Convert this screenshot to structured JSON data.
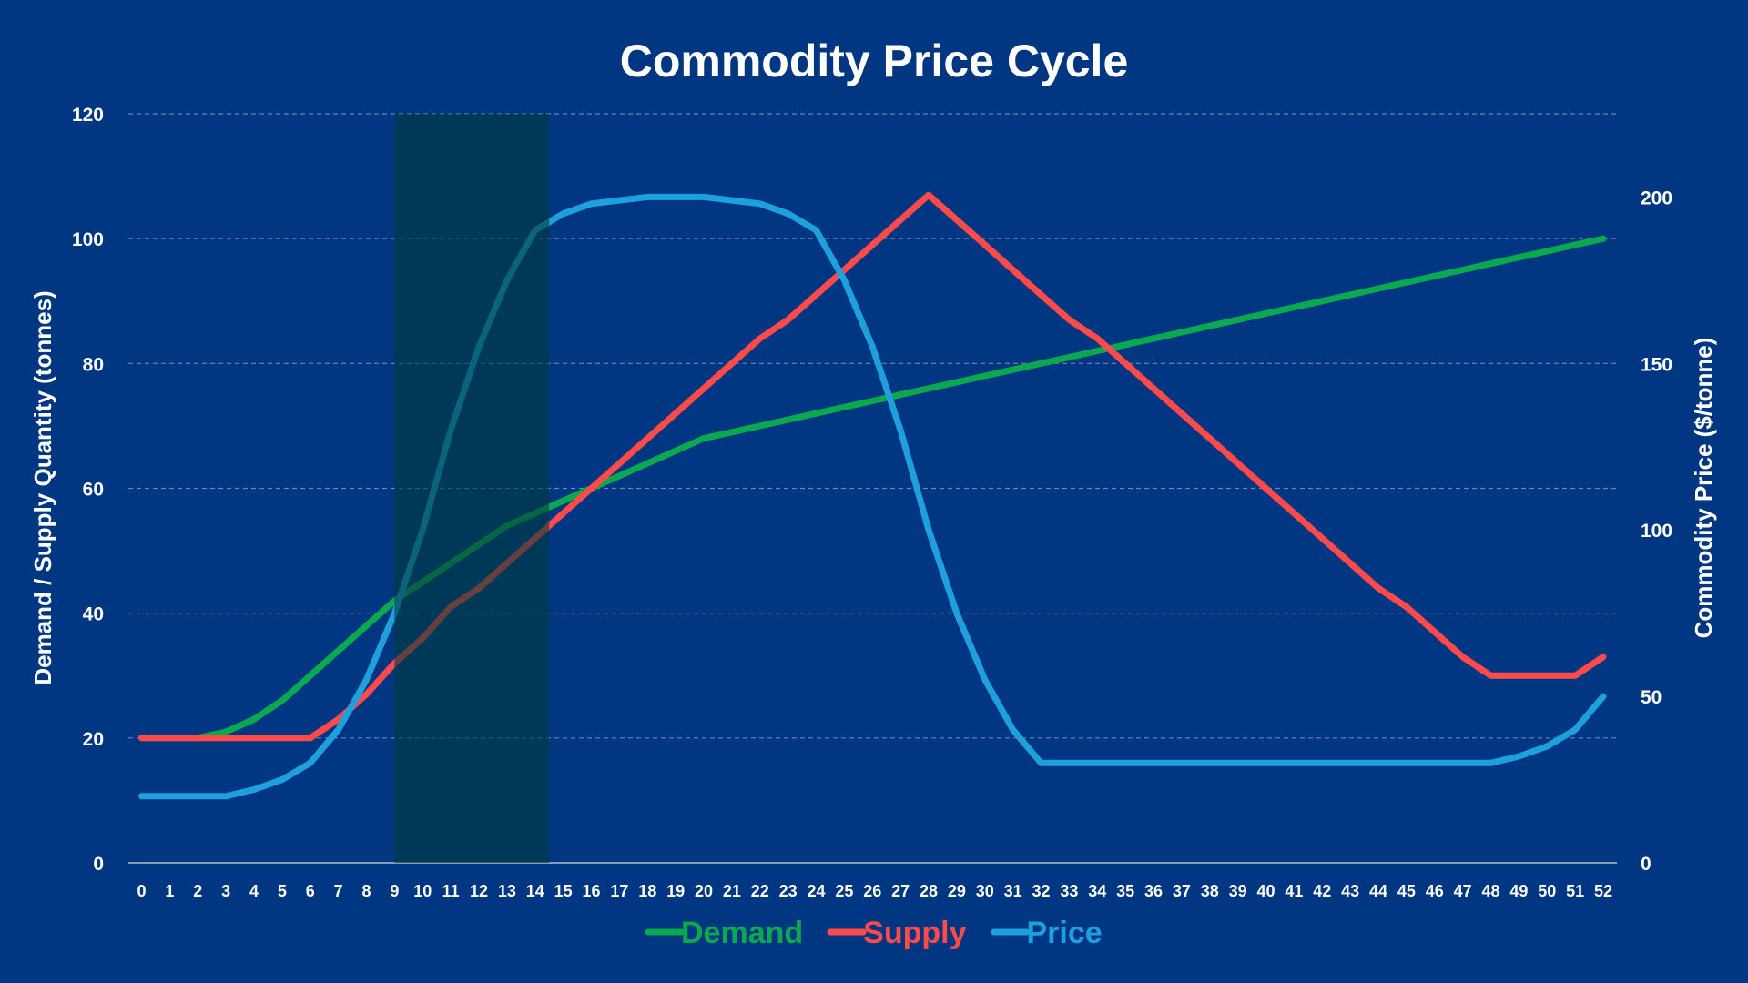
{
  "chart_data": {
    "type": "line",
    "title": "Commodity Price Cycle",
    "xlabel": "",
    "ylabel": "Demand  / Supply Quantity (tonnes)",
    "y2label": "Commodity Price ($/tonne)",
    "x": [
      0,
      1,
      2,
      3,
      4,
      5,
      6,
      7,
      8,
      9,
      10,
      11,
      12,
      13,
      14,
      15,
      16,
      17,
      18,
      19,
      20,
      21,
      22,
      23,
      24,
      25,
      26,
      27,
      28,
      29,
      30,
      31,
      32,
      33,
      34,
      35,
      36,
      37,
      38,
      39,
      40,
      41,
      42,
      43,
      44,
      45,
      46,
      47,
      48,
      49,
      50,
      51,
      52
    ],
    "ylim": [
      0,
      120
    ],
    "yticks": [
      0,
      20,
      40,
      60,
      80,
      100,
      120
    ],
    "y2lim": [
      0,
      225
    ],
    "y2ticks": [
      0,
      50,
      100,
      150,
      200
    ],
    "grid": true,
    "legend_placement": "bottom",
    "highlight_range": [
      9,
      14.5
    ],
    "series": [
      {
        "name": "Demand",
        "axis": "left",
        "color": "#0aa84f",
        "values": [
          20,
          20,
          20,
          21,
          23,
          26,
          30,
          34,
          38,
          42,
          45,
          48,
          51,
          54,
          56,
          58,
          60,
          62,
          64,
          66,
          68,
          69,
          70,
          71,
          72,
          73,
          74,
          75,
          76,
          77,
          78,
          79,
          80,
          81,
          82,
          83,
          84,
          85,
          86,
          87,
          88,
          89,
          90,
          91,
          92,
          93,
          94,
          95,
          96,
          97,
          98,
          99,
          100
        ]
      },
      {
        "name": "Supply",
        "axis": "left",
        "color": "#ff4a4a",
        "values": [
          20,
          20,
          20,
          20,
          20,
          20,
          20,
          23,
          27,
          32,
          36,
          41,
          44,
          48,
          52,
          56,
          60,
          64,
          68,
          72,
          76,
          80,
          84,
          87,
          91,
          95,
          99,
          103,
          107,
          103,
          99,
          95,
          91,
          87,
          84,
          80,
          76,
          72,
          68,
          64,
          60,
          56,
          52,
          48,
          44,
          41,
          37,
          33,
          30,
          30,
          30,
          30,
          33
        ]
      },
      {
        "name": "Price",
        "axis": "right",
        "color": "#1ea0dc",
        "values": [
          20,
          20,
          20,
          20,
          22,
          25,
          30,
          40,
          55,
          75,
          100,
          130,
          155,
          175,
          190,
          195,
          198,
          199,
          200,
          200,
          200,
          199,
          198,
          195,
          190,
          175,
          155,
          130,
          100,
          75,
          55,
          40,
          30,
          30,
          30,
          30,
          30,
          30,
          30,
          30,
          30,
          30,
          30,
          30,
          30,
          30,
          30,
          30,
          30,
          32,
          35,
          40,
          50
        ]
      }
    ]
  }
}
